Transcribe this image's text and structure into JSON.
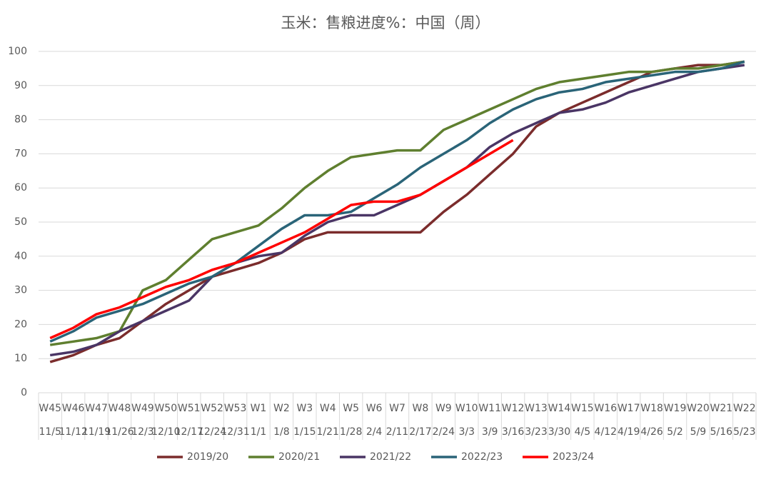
{
  "chart_data": {
    "type": "line",
    "title": "玉米：售粮进度%：中国（周）",
    "categories": [
      "W45",
      "W46",
      "W47",
      "W48",
      "W49",
      "W50",
      "W51",
      "W52",
      "W53",
      "W1",
      "W2",
      "W3",
      "W4",
      "W5",
      "W6",
      "W7",
      "W8",
      "W9",
      "W10",
      "W11",
      "W12",
      "W13",
      "W14",
      "W15",
      "W16",
      "W17",
      "W18",
      "W19",
      "W20",
      "W21",
      "W22"
    ],
    "category_dates": [
      "11/5",
      "11/12",
      "11/19",
      "11/26",
      "12/3",
      "12/10",
      "12/17",
      "12/24",
      "12/31",
      "1/1",
      "1/8",
      "1/15",
      "1/21",
      "1/28",
      "2/4",
      "2/11",
      "2/17",
      "2/24",
      "3/3",
      "3/9",
      "3/16",
      "3/23",
      "3/30",
      "4/5",
      "4/12",
      "4/19",
      "4/26",
      "5/2",
      "5/9",
      "5/16",
      "5/23"
    ],
    "series": [
      {
        "name": "2019/20",
        "color": "#7b2c2c",
        "values": [
          9,
          11,
          14,
          16,
          21,
          26,
          30,
          34,
          36,
          38,
          41,
          45,
          47,
          47,
          47,
          47,
          47,
          53,
          58,
          64,
          70,
          78,
          82,
          85,
          88,
          91,
          94,
          95,
          96,
          96,
          97
        ]
      },
      {
        "name": "2020/21",
        "color": "#5f7f2f",
        "values": [
          14,
          15,
          16,
          18,
          30,
          33,
          39,
          45,
          47,
          49,
          54,
          60,
          65,
          69,
          70,
          71,
          71,
          77,
          80,
          83,
          86,
          89,
          91,
          92,
          93,
          94,
          94,
          95,
          95,
          96,
          97
        ]
      },
      {
        "name": "2021/22",
        "color": "#4a3565",
        "values": [
          11,
          12,
          14,
          18,
          21,
          24,
          27,
          34,
          38,
          40,
          41,
          46,
          50,
          52,
          52,
          55,
          58,
          62,
          66,
          72,
          76,
          79,
          82,
          83,
          85,
          88,
          90,
          92,
          94,
          95,
          96
        ]
      },
      {
        "name": "2022/23",
        "color": "#2a6478",
        "values": [
          15,
          18,
          22,
          24,
          26,
          29,
          32,
          34,
          38,
          43,
          48,
          52,
          52,
          53,
          57,
          61,
          66,
          70,
          74,
          79,
          83,
          86,
          88,
          89,
          91,
          92,
          93,
          94,
          94,
          95,
          97
        ]
      },
      {
        "name": "2023/24",
        "color": "#ff0000",
        "values": [
          16,
          19,
          23,
          25,
          28,
          31,
          33,
          36,
          38,
          41,
          44,
          47,
          51,
          55,
          56,
          56,
          58,
          62,
          66,
          70,
          74,
          null,
          null,
          null,
          null,
          null,
          null,
          null,
          null,
          null,
          null
        ]
      }
    ],
    "ylim": [
      0,
      100
    ],
    "yticks": [
      0,
      10,
      20,
      30,
      40,
      50,
      60,
      70,
      80,
      90,
      100
    ],
    "grid": true,
    "legend": "bottom"
  }
}
